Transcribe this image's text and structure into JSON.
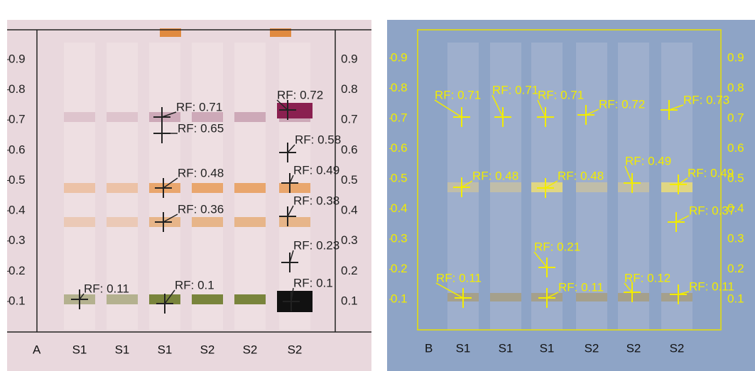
{
  "panels": [
    {
      "label": "A",
      "ticks": [
        0.9,
        0.8,
        0.7,
        0.6,
        0.5,
        0.4,
        0.3,
        0.2,
        0.1
      ],
      "lanes": [
        "S1",
        "S1",
        "S1",
        "S2",
        "S2",
        "S2"
      ],
      "annotations": [
        "RF: 0.11",
        "RF: 0.71",
        "RF: 0.65",
        "RF: 0.48",
        "RF: 0.36",
        "RF: 0.1",
        "RF: 0.72",
        "RF: 0.58",
        "RF: 0.49",
        "RF: 0.38",
        "RF: 0.23",
        "RF: 0.1"
      ]
    },
    {
      "label": "B",
      "ticks": [
        0.9,
        0.8,
        0.7,
        0.6,
        0.5,
        0.4,
        0.3,
        0.2,
        0.1
      ],
      "lanes": [
        "S1",
        "S1",
        "S1",
        "S2",
        "S2",
        "S2"
      ],
      "annotations": [
        "RF: 0.71",
        "RF: 0.71",
        "RF: 0.71",
        "RF: 0.72",
        "RF: 0.73",
        "RF: 0.48",
        "RF: 0.48",
        "RF: 0.49",
        "RF: 0.49",
        "RF: 0.37",
        "RF: 0.21",
        "RF: 0.11",
        "RF: 0.11",
        "RF: 0.12",
        "RF: 0.11"
      ]
    }
  ]
}
